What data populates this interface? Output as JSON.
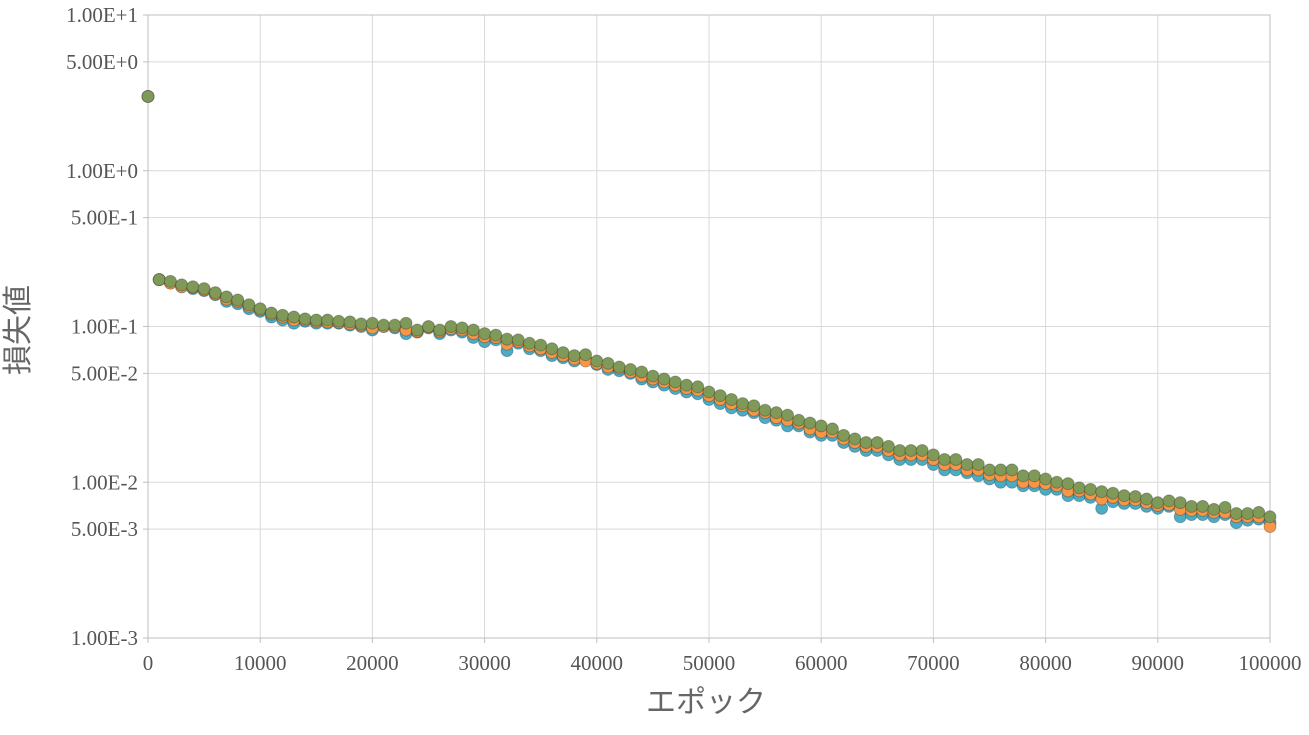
{
  "chart_data": {
    "type": "scatter",
    "xlabel": "エポック",
    "ylabel": "損失値",
    "xlim": [
      0,
      100000
    ],
    "ylim": [
      0.001,
      10
    ],
    "yscale": "log",
    "grid": true,
    "x_ticks": [
      {
        "value": 0,
        "label": "0"
      },
      {
        "value": 10000,
        "label": "10000"
      },
      {
        "value": 20000,
        "label": "20000"
      },
      {
        "value": 30000,
        "label": "30000"
      },
      {
        "value": 40000,
        "label": "40000"
      },
      {
        "value": 50000,
        "label": "50000"
      },
      {
        "value": 60000,
        "label": "60000"
      },
      {
        "value": 70000,
        "label": "70000"
      },
      {
        "value": 80000,
        "label": "80000"
      },
      {
        "value": 90000,
        "label": "90000"
      },
      {
        "value": 100000,
        "label": "100000"
      }
    ],
    "y_ticks": [
      {
        "value": 10,
        "label": "1.00E+1"
      },
      {
        "value": 5,
        "label": "5.00E+0"
      },
      {
        "value": 1,
        "label": "1.00E+0"
      },
      {
        "value": 0.5,
        "label": "5.00E-1"
      },
      {
        "value": 0.1,
        "label": "1.00E-1"
      },
      {
        "value": 0.05,
        "label": "5.00E-2"
      },
      {
        "value": 0.01,
        "label": "1.00E-2"
      },
      {
        "value": 0.005,
        "label": "5.00E-3"
      },
      {
        "value": 0.001,
        "label": "1.00E-3"
      }
    ],
    "x": [
      0,
      1000,
      2000,
      3000,
      4000,
      5000,
      6000,
      7000,
      8000,
      9000,
      10000,
      11000,
      12000,
      13000,
      14000,
      15000,
      16000,
      17000,
      18000,
      19000,
      20000,
      21000,
      22000,
      23000,
      24000,
      25000,
      26000,
      27000,
      28000,
      29000,
      30000,
      31000,
      32000,
      33000,
      34000,
      35000,
      36000,
      37000,
      38000,
      39000,
      40000,
      41000,
      42000,
      43000,
      44000,
      45000,
      46000,
      47000,
      48000,
      49000,
      50000,
      51000,
      52000,
      53000,
      54000,
      55000,
      56000,
      57000,
      58000,
      59000,
      60000,
      61000,
      62000,
      63000,
      64000,
      65000,
      66000,
      67000,
      68000,
      69000,
      70000,
      71000,
      72000,
      73000,
      74000,
      75000,
      76000,
      77000,
      78000,
      79000,
      80000,
      81000,
      82000,
      83000,
      84000,
      85000,
      86000,
      87000,
      88000,
      89000,
      90000,
      91000,
      92000,
      93000,
      94000,
      95000,
      96000,
      97000,
      98000,
      99000,
      100000
    ],
    "series": [
      {
        "color": "#4bacc6",
        "values": [
          3.0,
          0.2,
          0.19,
          0.18,
          0.175,
          0.17,
          0.16,
          0.145,
          0.14,
          0.13,
          0.125,
          0.115,
          0.11,
          0.105,
          0.108,
          0.105,
          0.105,
          0.105,
          0.102,
          0.1,
          0.095,
          0.1,
          0.098,
          0.09,
          0.092,
          0.098,
          0.09,
          0.095,
          0.092,
          0.085,
          0.08,
          0.082,
          0.07,
          0.078,
          0.072,
          0.07,
          0.065,
          0.063,
          0.06,
          0.062,
          0.057,
          0.053,
          0.052,
          0.05,
          0.046,
          0.044,
          0.042,
          0.04,
          0.038,
          0.037,
          0.034,
          0.032,
          0.03,
          0.029,
          0.028,
          0.026,
          0.025,
          0.023,
          0.023,
          0.021,
          0.02,
          0.02,
          0.018,
          0.017,
          0.016,
          0.016,
          0.015,
          0.014,
          0.014,
          0.014,
          0.013,
          0.012,
          0.012,
          0.0115,
          0.011,
          0.0105,
          0.01,
          0.01,
          0.0095,
          0.0095,
          0.009,
          0.009,
          0.0082,
          0.0082,
          0.008,
          0.0068,
          0.0075,
          0.0073,
          0.0073,
          0.007,
          0.0068,
          0.007,
          0.006,
          0.0062,
          0.0062,
          0.006,
          0.0062,
          0.0055,
          0.0057,
          0.0058,
          0.0055
        ]
      },
      {
        "color": "#f79646",
        "values": [
          3.0,
          0.2,
          0.19,
          0.18,
          0.178,
          0.172,
          0.162,
          0.15,
          0.145,
          0.135,
          0.128,
          0.12,
          0.115,
          0.11,
          0.11,
          0.108,
          0.107,
          0.106,
          0.104,
          0.102,
          0.098,
          0.1,
          0.1,
          0.095,
          0.093,
          0.099,
          0.093,
          0.097,
          0.095,
          0.09,
          0.086,
          0.085,
          0.077,
          0.08,
          0.075,
          0.072,
          0.068,
          0.065,
          0.062,
          0.06,
          0.058,
          0.055,
          0.054,
          0.051,
          0.048,
          0.046,
          0.044,
          0.042,
          0.04,
          0.039,
          0.036,
          0.034,
          0.032,
          0.031,
          0.029,
          0.028,
          0.026,
          0.025,
          0.024,
          0.022,
          0.021,
          0.021,
          0.019,
          0.018,
          0.017,
          0.017,
          0.016,
          0.015,
          0.015,
          0.015,
          0.014,
          0.013,
          0.013,
          0.012,
          0.012,
          0.0112,
          0.011,
          0.011,
          0.01,
          0.01,
          0.0098,
          0.0095,
          0.0088,
          0.0088,
          0.0084,
          0.0078,
          0.008,
          0.0077,
          0.0077,
          0.0074,
          0.0071,
          0.0072,
          0.0067,
          0.0066,
          0.0066,
          0.0064,
          0.0064,
          0.006,
          0.006,
          0.006,
          0.0052
        ]
      },
      {
        "color": "#7f9a58",
        "values": [
          3.0,
          0.2,
          0.195,
          0.185,
          0.18,
          0.175,
          0.165,
          0.155,
          0.148,
          0.138,
          0.13,
          0.122,
          0.118,
          0.115,
          0.112,
          0.11,
          0.11,
          0.108,
          0.107,
          0.104,
          0.105,
          0.102,
          0.102,
          0.105,
          0.095,
          0.1,
          0.095,
          0.1,
          0.098,
          0.095,
          0.09,
          0.088,
          0.083,
          0.082,
          0.078,
          0.076,
          0.072,
          0.068,
          0.065,
          0.066,
          0.06,
          0.058,
          0.055,
          0.053,
          0.051,
          0.048,
          0.046,
          0.044,
          0.042,
          0.041,
          0.038,
          0.036,
          0.034,
          0.032,
          0.031,
          0.029,
          0.028,
          0.027,
          0.025,
          0.024,
          0.023,
          0.022,
          0.02,
          0.019,
          0.018,
          0.018,
          0.017,
          0.016,
          0.016,
          0.016,
          0.015,
          0.014,
          0.014,
          0.013,
          0.013,
          0.012,
          0.012,
          0.012,
          0.011,
          0.011,
          0.0105,
          0.01,
          0.0098,
          0.0092,
          0.009,
          0.0087,
          0.0085,
          0.0082,
          0.0081,
          0.0078,
          0.0074,
          0.0076,
          0.0074,
          0.007,
          0.007,
          0.0067,
          0.0069,
          0.0063,
          0.0063,
          0.0064,
          0.006
        ]
      }
    ]
  }
}
